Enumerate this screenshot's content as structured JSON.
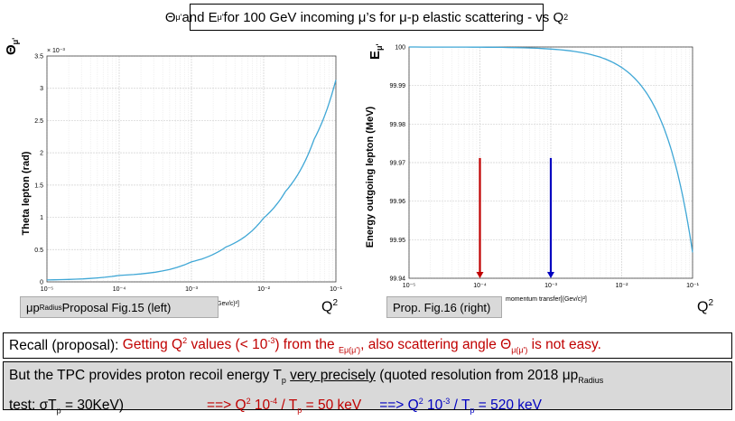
{
  "header": {
    "title_theta": "Θ",
    "title_sub1": "μ'",
    "title_and": " and E",
    "title_sub2": "μ'",
    "title_rest": " for 100 GeV incoming μ’s for μ-p elastic scattering  - vs Q",
    "title_sup": "2"
  },
  "left_caption": {
    "pre": "μp",
    "sub": "Radius",
    "post": " Proposal Fig.15 (left)"
  },
  "right_caption": {
    "text": "Prop. Fig.16 (right)"
  },
  "q2_left": {
    "q": "Q",
    "sup": "2"
  },
  "q2_right": {
    "q": "Q",
    "sup": "2"
  },
  "recall": {
    "label": "Recall (proposal): ",
    "t1": "Getting Q",
    "t1sup": "2",
    "t2": " values (< 10",
    "t2sup": "-3",
    "t3": ") from the ",
    "t3sub": "Eμ(μ')",
    "t4": ", also scattering angle Θ",
    "t4sub": "μ(μ')",
    "t5": " is not easy."
  },
  "but": {
    "a": "But  the TPC provides proton recoil energy T",
    "asub": "p",
    "b": " ",
    "u": "very precisely",
    "c": " (quoted resolution from 2018 μp",
    "csub": "Radius",
    "d": "test: σT",
    "dsub": "p",
    "e": " = 30KeV)",
    "r1": "==> Q",
    "r1sup": "2",
    "r2": " 10",
    "r2sup": "-4",
    "r3": " / T",
    "r3sub": "p",
    "r4": " = 50 keV",
    "b1": "==> Q",
    "b1sup": "2",
    "b2": " 10",
    "b2sup": "-3",
    "b3": " / T",
    "b3sub": "p",
    "b4": " = 520 keV"
  },
  "colors": {
    "curve": "#3fa7d6",
    "red_arrow": "#c00000",
    "blue_arrow": "#0000c0"
  },
  "chart_data": [
    {
      "type": "line",
      "name": "theta",
      "xscale": "log",
      "xlim": [
        1e-05,
        0.1
      ],
      "ylim": [
        0,
        3.5
      ],
      "y_multiplier": "× 10⁻³",
      "ylabel_symbol": "Θ",
      "ylabel_symbol_sub": "μ'",
      "ylabel": "Theta lepton (rad)",
      "xlabel": "transfer[(Gev/c)²]",
      "xticks": [
        "10⁻⁵",
        "10⁻⁴",
        "10⁻³",
        "10⁻²",
        "10⁻¹"
      ],
      "yticks": [
        "0",
        "0.5",
        "1",
        "1.5",
        "2",
        "2.5",
        "3",
        "3.5"
      ],
      "series": [
        {
          "name": "theta",
          "x": [
            1e-05,
            0.0001,
            0.001,
            0.003,
            0.01,
            0.02,
            0.05,
            0.1
          ],
          "y": [
            0.03,
            0.1,
            0.31,
            0.54,
            0.99,
            1.4,
            2.21,
            3.13
          ]
        }
      ]
    },
    {
      "type": "line",
      "name": "energy",
      "xscale": "log",
      "xlim": [
        1e-05,
        0.1
      ],
      "ylim": [
        99.94,
        100
      ],
      "ylabel_symbol": "E",
      "ylabel_symbol_sub": "μ'",
      "ylabel": "Energy outgoing lepton (MeV)",
      "xlabel": "momentum transfer[(Gev/c)²]",
      "xticks": [
        "10⁻⁵",
        "10⁻⁴",
        "10⁻³",
        "10⁻²",
        "10⁻¹"
      ],
      "yticks": [
        "99.94",
        "99.95",
        "99.96",
        "99.97",
        "99.98",
        "99.99",
        "100"
      ],
      "series": [
        {
          "name": "energy",
          "x": [
            1e-05,
            0.0001,
            0.001,
            0.005,
            0.01,
            0.02,
            0.04,
            0.06,
            0.08,
            0.1
          ],
          "y": [
            99.99999,
            99.99995,
            99.99947,
            99.99734,
            99.99467,
            99.98934,
            99.97868,
            99.96802,
            99.95736,
            99.9467
          ]
        }
      ],
      "annotations": [
        {
          "type": "arrow",
          "x": 0.0001,
          "y_from": 99.9712,
          "y_to": 99.94,
          "color": "red"
        },
        {
          "type": "arrow",
          "x": 0.001,
          "y_from": 99.9712,
          "y_to": 99.94,
          "color": "blue"
        }
      ]
    }
  ]
}
